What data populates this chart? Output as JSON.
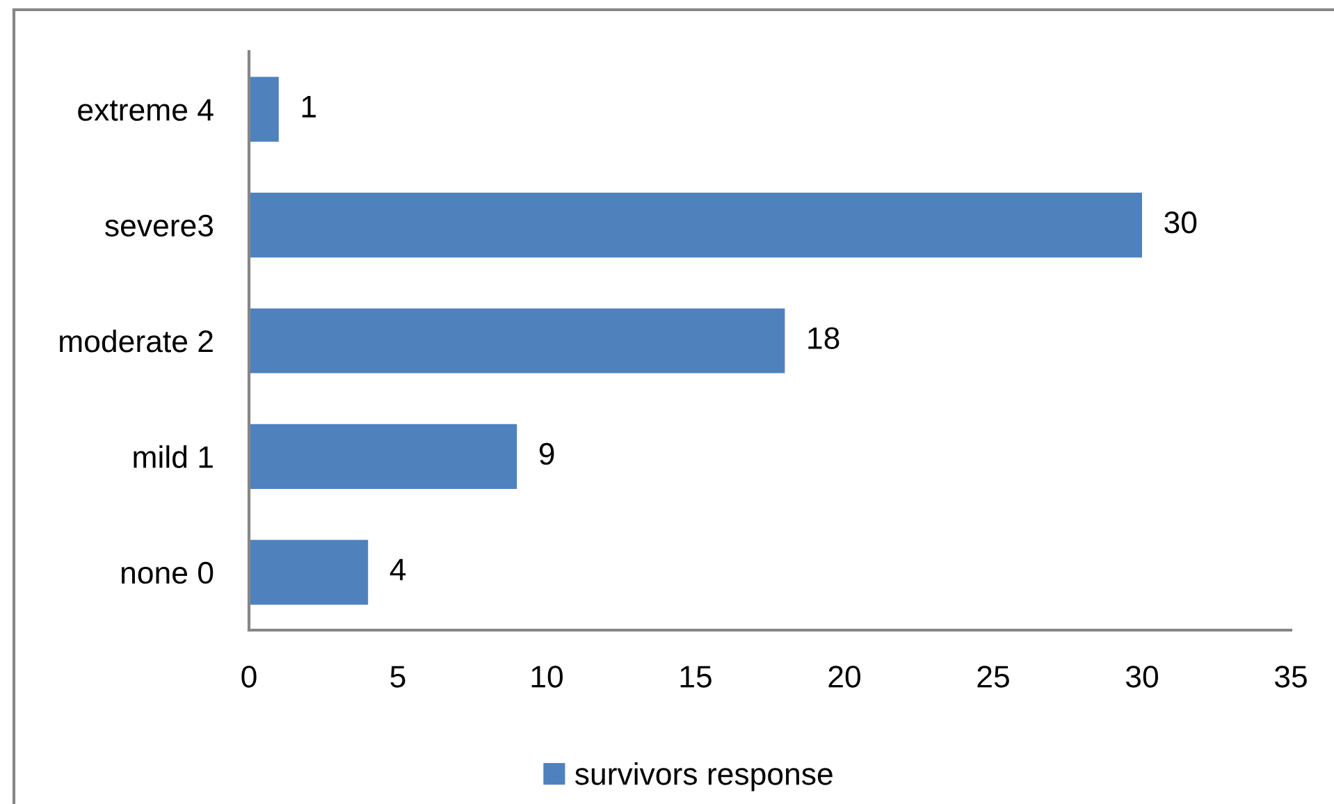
{
  "chart_data": {
    "type": "bar",
    "orientation": "horizontal",
    "categories": [
      "extreme 4",
      "severe3",
      "moderate 2",
      "mild 1",
      "none 0"
    ],
    "series": [
      {
        "name": "survivors response",
        "color": "#4f81bd",
        "values": [
          1,
          30,
          18,
          9,
          4
        ]
      }
    ],
    "xlim": [
      0,
      35
    ],
    "xticks": [
      0,
      5,
      10,
      15,
      20,
      25,
      30,
      35
    ],
    "data_labels": true,
    "legend": "bottom",
    "grid": false
  }
}
